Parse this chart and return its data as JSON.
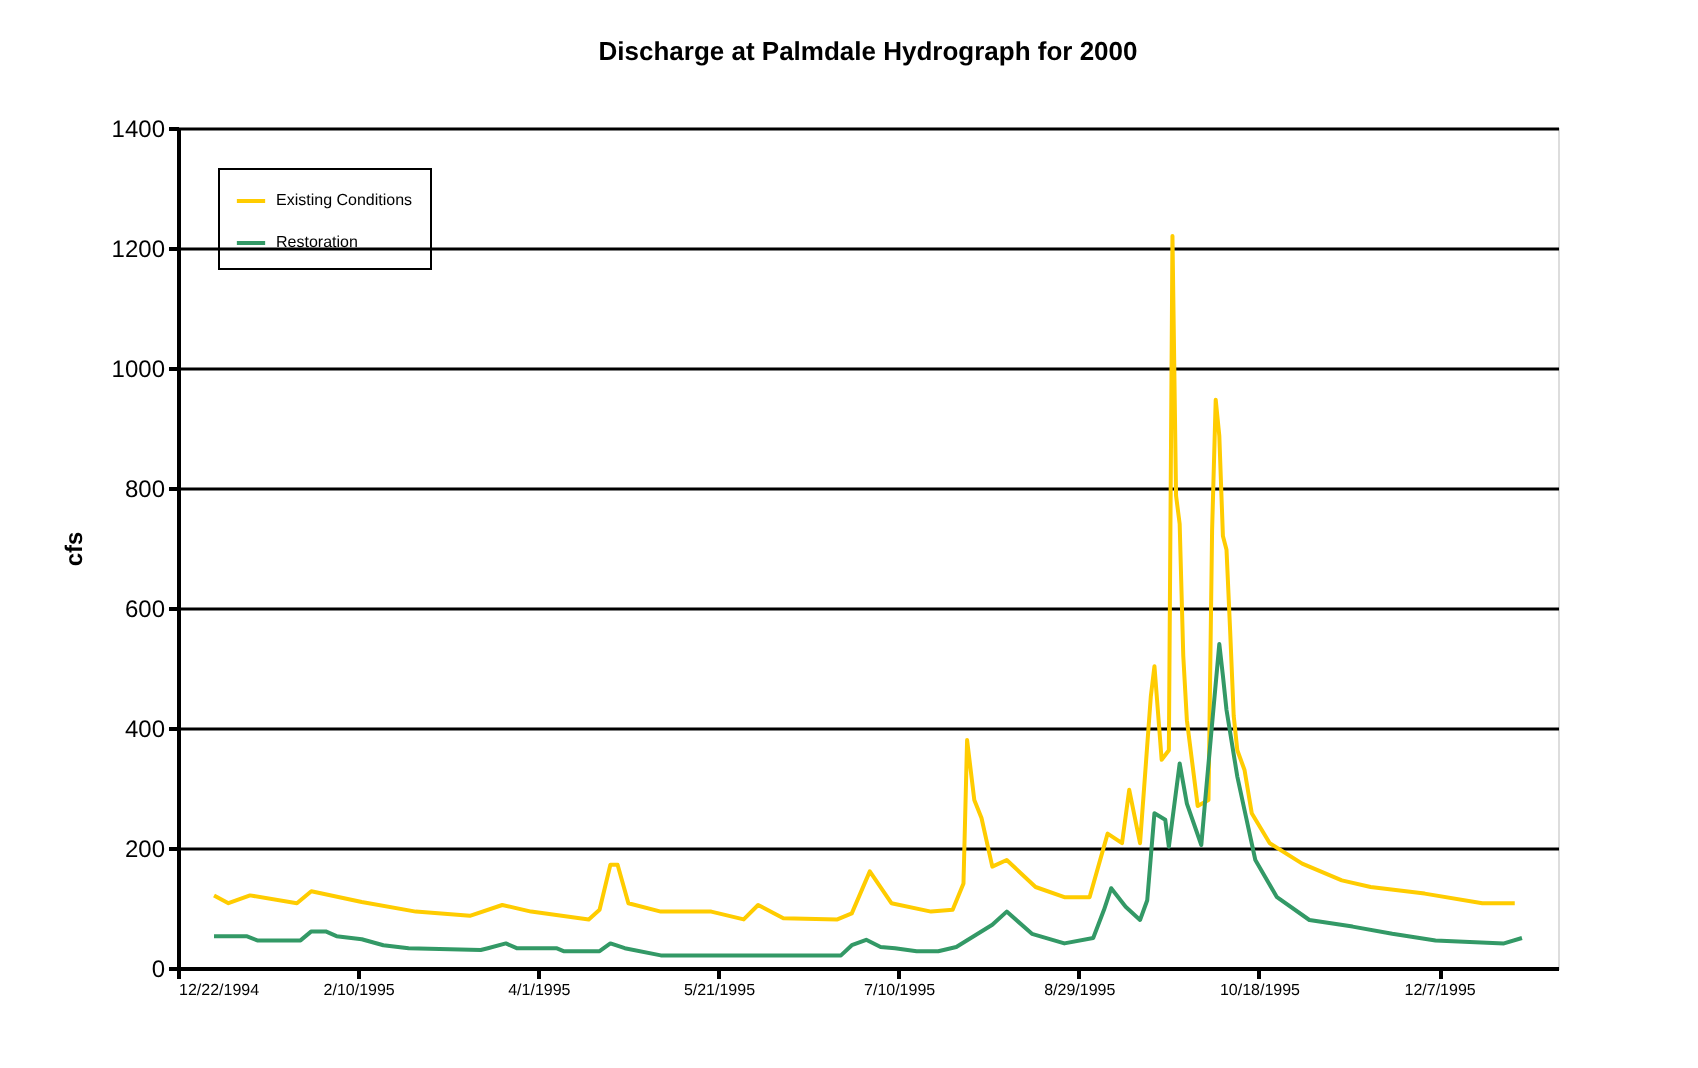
{
  "chart_data": {
    "type": "line",
    "title": "Discharge at Palmdale Hydrograph for 2000",
    "ylabel": "cfs",
    "xlim": [
      "1994-12-22",
      "1996-01-09"
    ],
    "xticks": [
      {
        "value": "1994-12-22",
        "label": "12/22/1994"
      },
      {
        "value": "1995-02-10",
        "label": "2/10/1995"
      },
      {
        "value": "1995-04-01",
        "label": "4/1/1995"
      },
      {
        "value": "1995-05-21",
        "label": "5/21/1995"
      },
      {
        "value": "1995-07-10",
        "label": "7/10/1995"
      },
      {
        "value": "1995-08-29",
        "label": "8/29/1995"
      },
      {
        "value": "1995-10-18",
        "label": "10/18/1995"
      },
      {
        "value": "1995-12-07",
        "label": "12/7/1995"
      }
    ],
    "ylim": [
      0,
      1400
    ],
    "yticks": [
      0,
      200,
      400,
      600,
      800,
      1000,
      1200,
      1400
    ],
    "grid": "y",
    "legend": "top left",
    "marker": "none",
    "line_style": "solid",
    "series": [
      {
        "name": "Existing Conditions",
        "color": "#ffcc00",
        "x": [
          "1995-01-01",
          "1995-01-05",
          "1995-01-11",
          "1995-01-24",
          "1995-01-28",
          "1995-02-11",
          "1995-02-26",
          "1995-03-13",
          "1995-03-22",
          "1995-03-30",
          "1995-04-15",
          "1995-04-18",
          "1995-04-21",
          "1995-04-23",
          "1995-04-26",
          "1995-05-05",
          "1995-05-19",
          "1995-05-28",
          "1995-06-01",
          "1995-06-08",
          "1995-06-23",
          "1995-06-27",
          "1995-07-02",
          "1995-07-08",
          "1995-07-19",
          "1995-07-25",
          "1995-07-28",
          "1995-07-29",
          "1995-07-31",
          "1995-08-02",
          "1995-08-05",
          "1995-08-09",
          "1995-08-17",
          "1995-08-25",
          "1995-09-01",
          "1995-09-06",
          "1995-09-10",
          "1995-09-12",
          "1995-09-15",
          "1995-09-18",
          "1995-09-19",
          "1995-09-21",
          "1995-09-23",
          "1995-09-24",
          "1995-09-25",
          "1995-09-26",
          "1995-09-27",
          "1995-09-28",
          "1995-10-01",
          "1995-10-04",
          "1995-10-05",
          "1995-10-06",
          "1995-10-07",
          "1995-10-08",
          "1995-10-09",
          "1995-10-10",
          "1995-10-11",
          "1995-10-12",
          "1995-10-14",
          "1995-10-16",
          "1995-10-21",
          "1995-10-30",
          "1995-11-10",
          "1995-11-18",
          "1995-12-03",
          "1995-12-19",
          "1995-12-28"
        ],
        "values": [
          121,
          108,
          121,
          108,
          128,
          110,
          94,
          87,
          105,
          94,
          81,
          97,
          172,
          172,
          108,
          94,
          94,
          81,
          105,
          83,
          81,
          91,
          161,
          108,
          94,
          97,
          141,
          380,
          280,
          250,
          169,
          180,
          135,
          118,
          118,
          224,
          208,
          297,
          208,
          453,
          503,
          347,
          363,
          1220,
          787,
          740,
          520,
          413,
          270,
          280,
          730,
          947,
          887,
          720,
          697,
          563,
          420,
          363,
          330,
          258,
          208,
          174,
          146,
          135,
          124,
          108,
          108
        ]
      },
      {
        "name": "Restoration",
        "color": "#339966",
        "x": [
          "1995-01-01",
          "1995-01-10",
          "1995-01-13",
          "1995-01-25",
          "1995-01-28",
          "1995-02-01",
          "1995-02-04",
          "1995-02-11",
          "1995-02-17",
          "1995-02-24",
          "1995-03-16",
          "1995-03-18",
          "1995-03-23",
          "1995-03-26",
          "1995-04-06",
          "1995-04-08",
          "1995-04-18",
          "1995-04-21",
          "1995-04-25",
          "1995-05-05",
          "1995-06-24",
          "1995-06-27",
          "1995-07-01",
          "1995-07-05",
          "1995-07-09",
          "1995-07-15",
          "1995-07-21",
          "1995-07-26",
          "1995-08-05",
          "1995-08-09",
          "1995-08-16",
          "1995-08-25",
          "1995-09-02",
          "1995-09-05",
          "1995-09-07",
          "1995-09-11",
          "1995-09-15",
          "1995-09-17",
          "1995-09-19",
          "1995-09-22",
          "1995-09-23",
          "1995-09-26",
          "1995-09-28",
          "1995-10-02",
          "1995-10-03",
          "1995-10-07",
          "1995-10-08",
          "1995-10-09",
          "1995-10-12",
          "1995-10-14",
          "1995-10-17",
          "1995-10-23",
          "1995-11-01",
          "1995-11-13",
          "1995-11-24",
          "1995-12-06",
          "1995-12-25",
          "1995-12-30"
        ],
        "values": [
          53,
          53,
          46,
          46,
          61,
          61,
          53,
          48,
          38,
          33,
          30,
          33,
          41,
          33,
          33,
          28,
          28,
          41,
          33,
          21,
          21,
          38,
          47,
          35,
          33,
          28,
          28,
          35,
          72,
          94,
          57,
          41,
          50,
          97,
          133,
          102,
          80,
          113,
          258,
          247,
          202,
          341,
          274,
          205,
          274,
          540,
          487,
          430,
          319,
          263,
          180,
          118,
          80,
          69,
          57,
          46,
          41,
          50
        ]
      }
    ]
  }
}
